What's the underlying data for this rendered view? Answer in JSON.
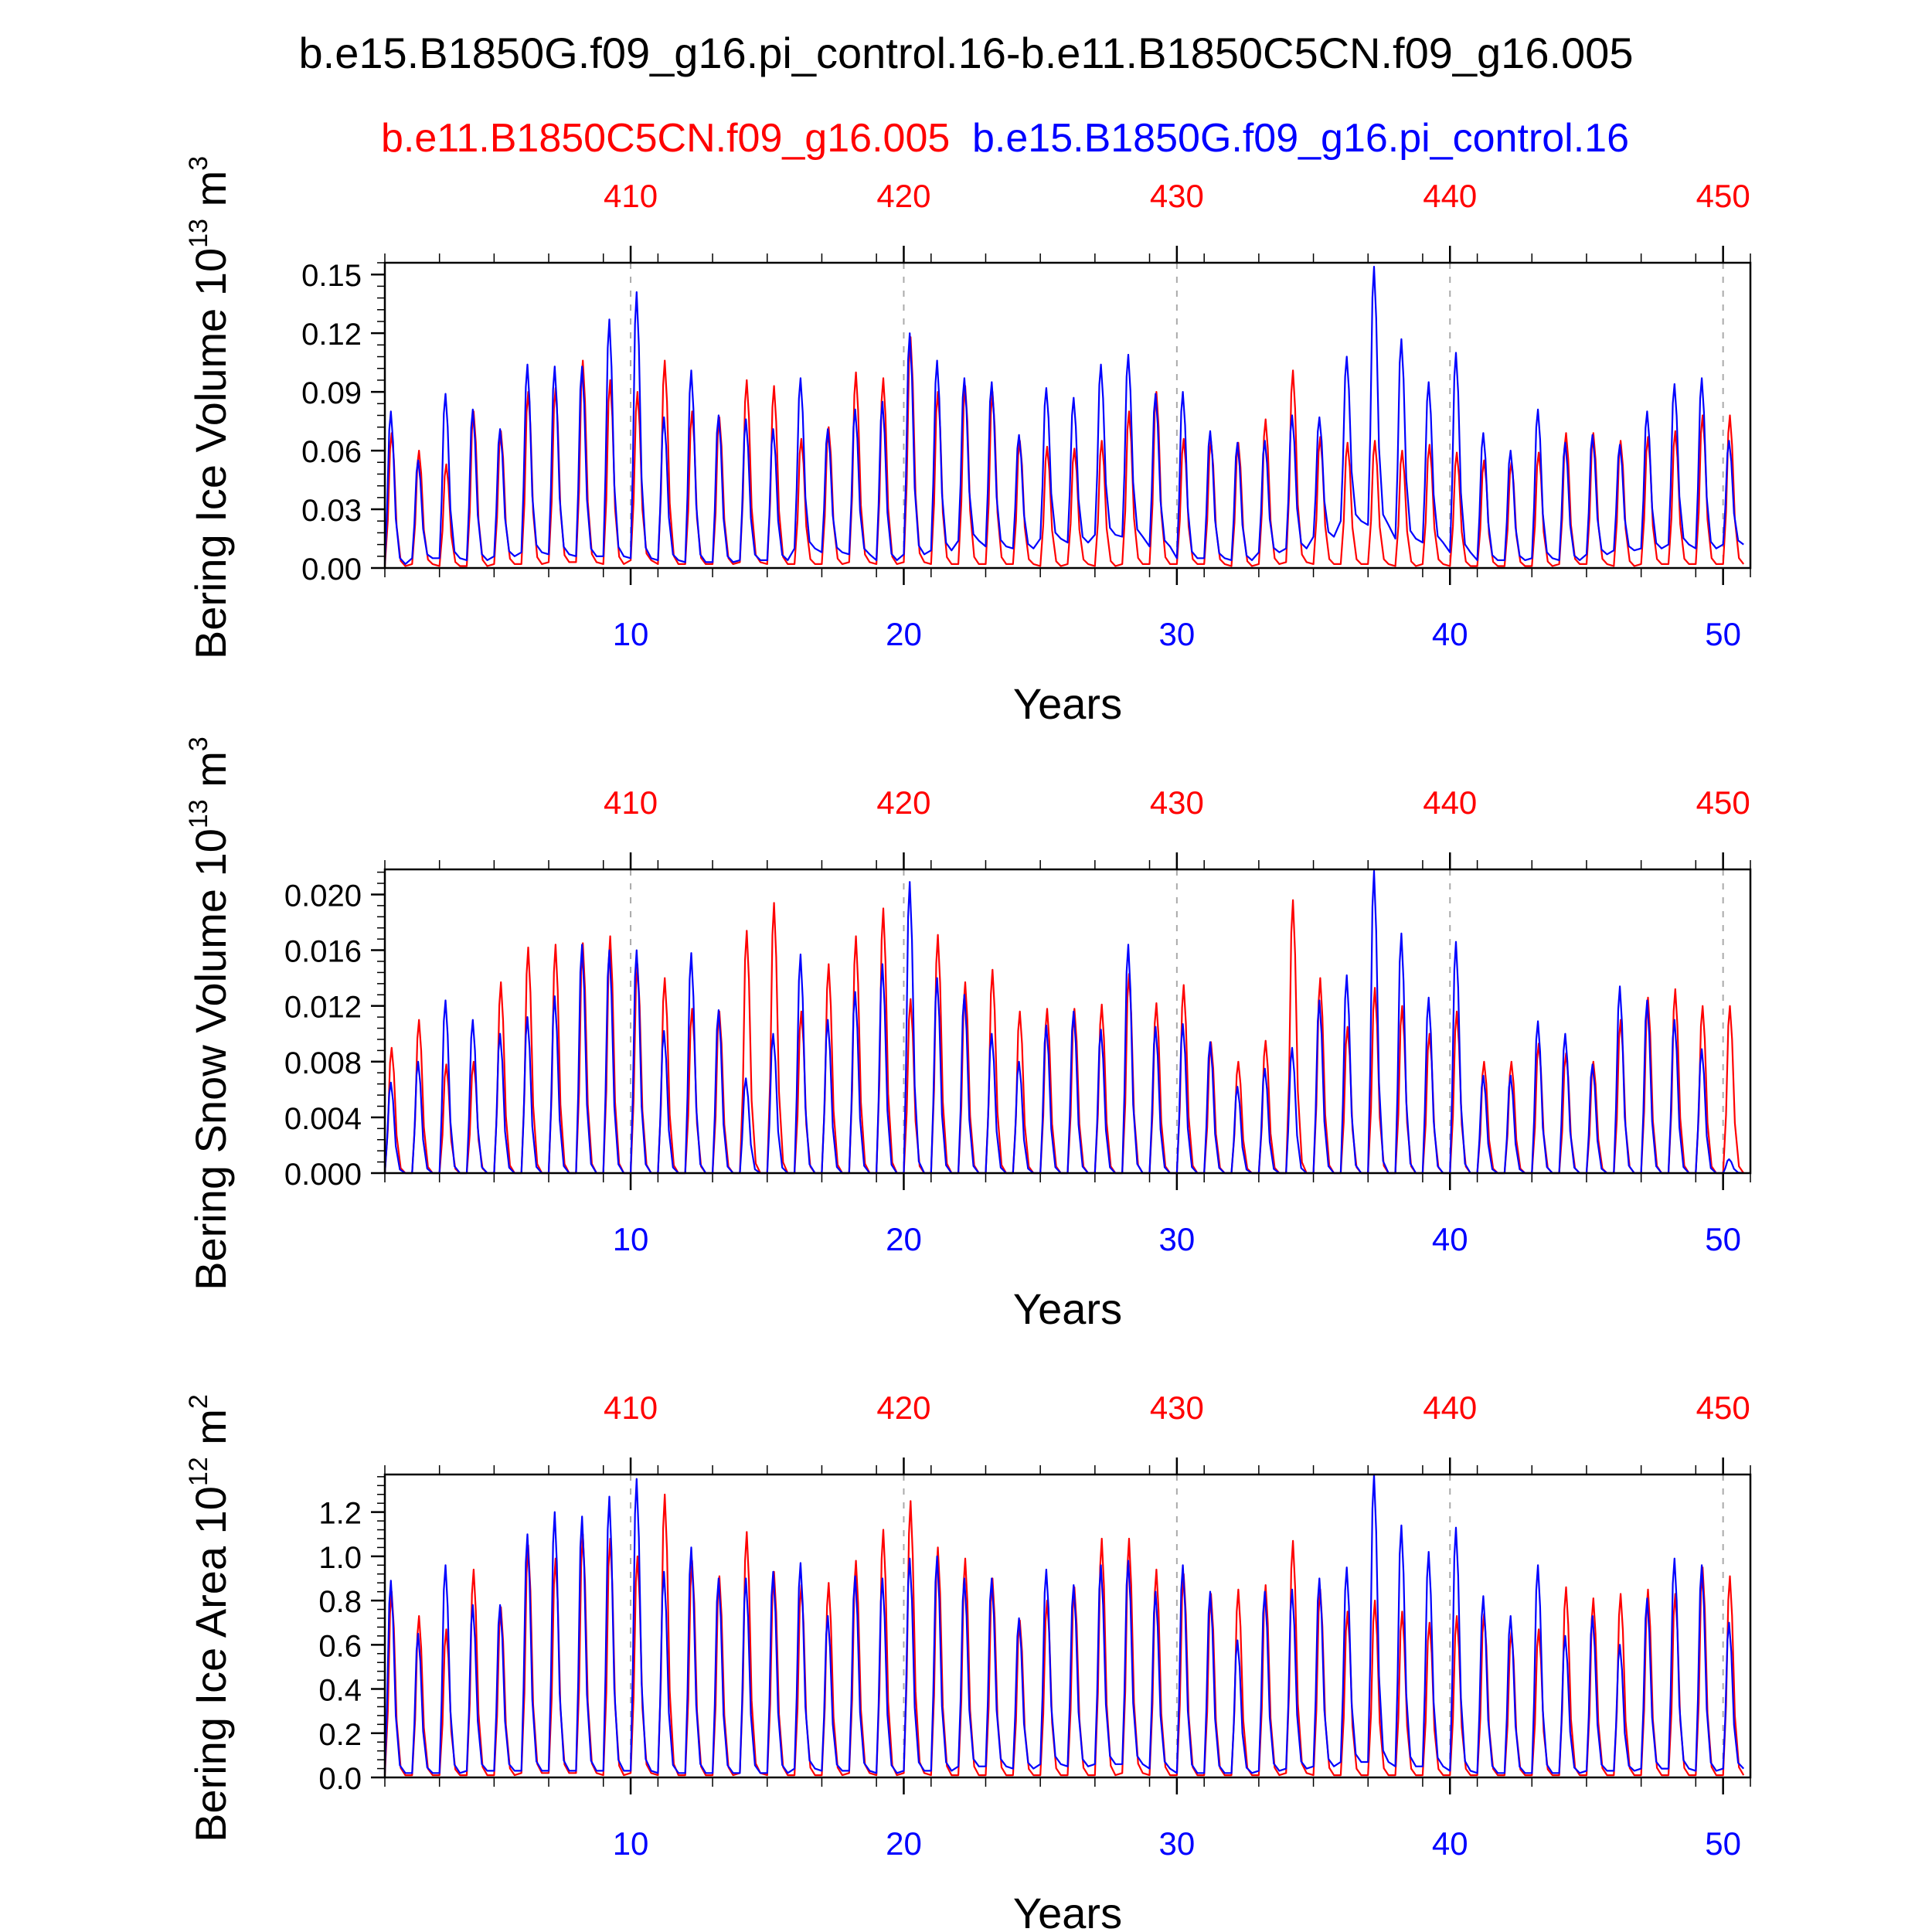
{
  "title": "b.e15.B1850G.f09_g16.pi_control.16-b.e11.B1850C5CN.f09_g16.005",
  "legend": {
    "red_label": "b.e11.B1850C5CN.f09_g16.005",
    "blue_label": "b.e15.B1850G.f09_g16.pi_control.16"
  },
  "colors": {
    "red": "#ff0000",
    "blue": "#0000ff",
    "axis": "#000000",
    "grid": "#aaaaaa"
  },
  "chart_data": [
    {
      "type": "line",
      "ylabel": "Bering Ice Volume",
      "unit_base": "10",
      "unit_exp": "13",
      "unit_suffix": "m",
      "unit_suffix_exp": "3",
      "xlabel": "Years",
      "xlim": [
        1,
        51
      ],
      "ylim": [
        0,
        0.156
      ],
      "yticks": [
        "0.00",
        "0.03",
        "0.06",
        "0.09",
        "0.12",
        "0.15"
      ],
      "ytick_values": [
        0,
        0.03,
        0.06,
        0.09,
        0.12,
        0.15
      ],
      "bottom_ticks": [
        "10",
        "20",
        "30",
        "40",
        "50"
      ],
      "top_ticks": [
        "410",
        "420",
        "430",
        "440",
        "450"
      ],
      "series": [
        {
          "name": "b.e11.B1850C5CN.f09_g16.005",
          "color": "red",
          "peaks": [
            0.069,
            0.06,
            0.053,
            0.08,
            0.07,
            0.09,
            0.092,
            0.106,
            0.096,
            0.09,
            0.106,
            0.08,
            0.077,
            0.096,
            0.093,
            0.066,
            0.072,
            0.1,
            0.097,
            0.118,
            0.09,
            0.093,
            0.09,
            0.065,
            0.062,
            0.061,
            0.065,
            0.08,
            0.09,
            0.066,
            0.065,
            0.064,
            0.076,
            0.101,
            0.067,
            0.064,
            0.065,
            0.06,
            0.063,
            0.059,
            0.055,
            0.054,
            0.059,
            0.069,
            0.069,
            0.065,
            0.067,
            0.07,
            0.078,
            0.078
          ],
          "troughs": [
            0.001,
            0.002,
            0.001,
            0.001,
            0.002,
            0.002,
            0.003,
            0.003,
            0.002,
            0.004,
            0.002,
            0.002,
            0.002,
            0.003,
            0.002,
            0.002,
            0.002,
            0.003,
            0.002,
            0.003,
            0.002,
            0.002,
            0.002,
            0.002,
            0.001,
            0.002,
            0.001,
            0.002,
            0.002,
            0.002,
            0.002,
            0.001,
            0.002,
            0.003,
            0.002,
            0.002,
            0.002,
            0.001,
            0.002,
            0.001,
            0.001,
            0.001,
            0.001,
            0.002,
            0.002,
            0.001,
            0.002,
            0.002,
            0.002,
            0.002
          ]
        },
        {
          "name": "b.e15.B1850G.f09_g16.pi_control.16",
          "color": "blue",
          "peaks": [
            0.08,
            0.055,
            0.089,
            0.081,
            0.071,
            0.104,
            0.103,
            0.103,
            0.127,
            0.141,
            0.077,
            0.101,
            0.078,
            0.076,
            0.071,
            0.097,
            0.071,
            0.081,
            0.085,
            0.12,
            0.106,
            0.097,
            0.095,
            0.068,
            0.092,
            0.087,
            0.104,
            0.109,
            0.089,
            0.09,
            0.07,
            0.064,
            0.065,
            0.078,
            0.077,
            0.108,
            0.154,
            0.117,
            0.095,
            0.11,
            0.069,
            0.06,
            0.081,
            0.064,
            0.068,
            0.063,
            0.08,
            0.094,
            0.097,
            0.065
          ],
          "troughs": [
            0.002,
            0.005,
            0.005,
            0.004,
            0.006,
            0.008,
            0.007,
            0.006,
            0.006,
            0.005,
            0.004,
            0.003,
            0.003,
            0.004,
            0.004,
            0.01,
            0.008,
            0.007,
            0.004,
            0.007,
            0.009,
            0.014,
            0.011,
            0.01,
            0.015,
            0.013,
            0.017,
            0.016,
            0.011,
            0.005,
            0.005,
            0.004,
            0.008,
            0.01,
            0.016,
            0.024,
            0.022,
            0.015,
            0.013,
            0.008,
            0.004,
            0.004,
            0.005,
            0.004,
            0.007,
            0.009,
            0.01,
            0.012,
            0.01,
            0.012
          ]
        }
      ]
    },
    {
      "type": "line",
      "ylabel": "Bering Snow Volume",
      "unit_base": "10",
      "unit_exp": "13",
      "unit_suffix": "m",
      "unit_suffix_exp": "3",
      "xlabel": "Years",
      "xlim": [
        1,
        51
      ],
      "ylim": [
        0,
        0.0218
      ],
      "yticks": [
        "0.000",
        "0.004",
        "0.008",
        "0.012",
        "0.016",
        "0.020"
      ],
      "ytick_values": [
        0,
        0.004,
        0.008,
        0.012,
        0.016,
        0.02
      ],
      "bottom_ticks": [
        "10",
        "20",
        "30",
        "40",
        "50"
      ],
      "top_ticks": [
        "410",
        "420",
        "430",
        "440",
        "450"
      ],
      "series": [
        {
          "name": "b.e11.B1850C5CN.f09_g16.005",
          "color": "red",
          "peaks": [
            0.009,
            0.011,
            0.0078,
            0.008,
            0.0137,
            0.0162,
            0.0164,
            0.0165,
            0.017,
            0.015,
            0.014,
            0.0118,
            0.0116,
            0.0174,
            0.0194,
            0.0116,
            0.015,
            0.017,
            0.019,
            0.0125,
            0.0171,
            0.0137,
            0.0146,
            0.0116,
            0.0118,
            0.0118,
            0.0121,
            0.0143,
            0.0122,
            0.0135,
            0.0094,
            0.008,
            0.0095,
            0.0196,
            0.014,
            0.0105,
            0.0133,
            0.012,
            0.01,
            0.0116,
            0.008,
            0.008,
            0.0093,
            0.0086,
            0.008,
            0.011,
            0.0126,
            0.0132,
            0.012,
            0.012
          ],
          "troughs": [
            0,
            0,
            0,
            0,
            0,
            0,
            0,
            0,
            0,
            0,
            0,
            0,
            0,
            0,
            0,
            0,
            0,
            0,
            0,
            0,
            0,
            0,
            0,
            0,
            0,
            0,
            0,
            0,
            0,
            0,
            0,
            0,
            0,
            0,
            0,
            0,
            0,
            0,
            0,
            0,
            0,
            0,
            0,
            0,
            0,
            0,
            0,
            0,
            0,
            0
          ]
        },
        {
          "name": "b.e15.B1850G.f09_g16.pi_control.16",
          "color": "blue",
          "peaks": [
            0.0065,
            0.008,
            0.0124,
            0.011,
            0.01,
            0.0112,
            0.0127,
            0.0164,
            0.016,
            0.016,
            0.0102,
            0.0158,
            0.0117,
            0.0068,
            0.01,
            0.0157,
            0.011,
            0.013,
            0.015,
            0.0209,
            0.014,
            0.0128,
            0.01,
            0.008,
            0.0106,
            0.0116,
            0.0103,
            0.0164,
            0.0105,
            0.0107,
            0.0094,
            0.0062,
            0.0075,
            0.009,
            0.0124,
            0.0142,
            0.0217,
            0.0172,
            0.0126,
            0.0166,
            0.007,
            0.007,
            0.0109,
            0.01,
            0.0078,
            0.0134,
            0.0124,
            0.011,
            0.0089,
            0.001
          ],
          "troughs": [
            0,
            0,
            0,
            0,
            0,
            0,
            0,
            0,
            0,
            0,
            0,
            0,
            0,
            0,
            0,
            0,
            0,
            0,
            0,
            0,
            0,
            0,
            0,
            0,
            0,
            0,
            0,
            0,
            0,
            0,
            0,
            0,
            0,
            0,
            0,
            0,
            0,
            0,
            0,
            0,
            0,
            0,
            0,
            0,
            0,
            0,
            0,
            0,
            0,
            0
          ]
        }
      ]
    },
    {
      "type": "line",
      "ylabel": "Bering Ice Area",
      "unit_base": "10",
      "unit_exp": "12",
      "unit_suffix": "m",
      "unit_suffix_exp": "2",
      "xlabel": "Years",
      "xlim": [
        1,
        51
      ],
      "ylim": [
        0,
        1.37
      ],
      "yticks": [
        "0.0",
        "0.2",
        "0.4",
        "0.6",
        "0.8",
        "1.0",
        "1.2"
      ],
      "ytick_values": [
        0,
        0.2,
        0.4,
        0.6,
        0.8,
        1.0,
        1.2
      ],
      "bottom_ticks": [
        "10",
        "20",
        "30",
        "40",
        "50"
      ],
      "top_ticks": [
        "410",
        "420",
        "430",
        "440",
        "450"
      ],
      "series": [
        {
          "name": "b.e11.B1850C5CN.f09_g16.005",
          "color": "red",
          "peaks": [
            0.84,
            0.73,
            0.67,
            0.94,
            0.77,
            1.05,
            0.99,
            1.1,
            1.08,
            1.0,
            1.28,
            0.98,
            0.91,
            1.11,
            0.93,
            0.87,
            0.88,
            0.98,
            1.12,
            1.25,
            1.04,
            0.99,
            0.9,
            0.71,
            0.8,
            0.86,
            1.08,
            1.08,
            0.94,
            0.92,
            0.83,
            0.85,
            0.87,
            1.07,
            0.85,
            0.75,
            0.8,
            0.75,
            0.7,
            0.73,
            0.74,
            0.66,
            0.67,
            0.86,
            0.81,
            0.83,
            0.85,
            0.83,
            0.95,
            0.91
          ],
          "troughs": [
            0.01,
            0.01,
            0.01,
            0.01,
            0.01,
            0.02,
            0.02,
            0.02,
            0.01,
            0.02,
            0.01,
            0.01,
            0.01,
            0.02,
            0.01,
            0.01,
            0.01,
            0.02,
            0.01,
            0.02,
            0.01,
            0.01,
            0.01,
            0.01,
            0.01,
            0.01,
            0.01,
            0.02,
            0.01,
            0.01,
            0.01,
            0.01,
            0.01,
            0.02,
            0.01,
            0.01,
            0.01,
            0.01,
            0.01,
            0.01,
            0.01,
            0.01,
            0.01,
            0.01,
            0.01,
            0.01,
            0.01,
            0.01,
            0.01,
            0.01
          ]
        },
        {
          "name": "b.e15.B1850G.f09_g16.pi_control.16",
          "color": "blue",
          "peaks": [
            0.89,
            0.65,
            0.96,
            0.78,
            0.78,
            1.1,
            1.2,
            1.18,
            1.27,
            1.35,
            0.93,
            1.04,
            0.9,
            0.9,
            0.93,
            0.97,
            0.73,
            0.91,
            0.9,
            0.99,
            1.0,
            0.9,
            0.9,
            0.72,
            0.94,
            0.87,
            0.96,
            0.98,
            0.84,
            0.96,
            0.84,
            0.62,
            0.84,
            0.85,
            0.9,
            0.95,
            1.37,
            1.14,
            1.02,
            1.13,
            0.82,
            0.73,
            0.96,
            0.64,
            0.73,
            0.6,
            0.81,
            0.99,
            0.96,
            0.7
          ],
          "troughs": [
            0.02,
            0.02,
            0.02,
            0.03,
            0.03,
            0.03,
            0.03,
            0.03,
            0.03,
            0.03,
            0.02,
            0.02,
            0.02,
            0.02,
            0.02,
            0.04,
            0.03,
            0.03,
            0.02,
            0.03,
            0.03,
            0.05,
            0.05,
            0.04,
            0.06,
            0.05,
            0.06,
            0.06,
            0.04,
            0.02,
            0.02,
            0.02,
            0.03,
            0.04,
            0.05,
            0.07,
            0.07,
            0.05,
            0.05,
            0.03,
            0.02,
            0.02,
            0.02,
            0.02,
            0.03,
            0.03,
            0.04,
            0.04,
            0.03,
            0.04
          ]
        }
      ]
    }
  ]
}
